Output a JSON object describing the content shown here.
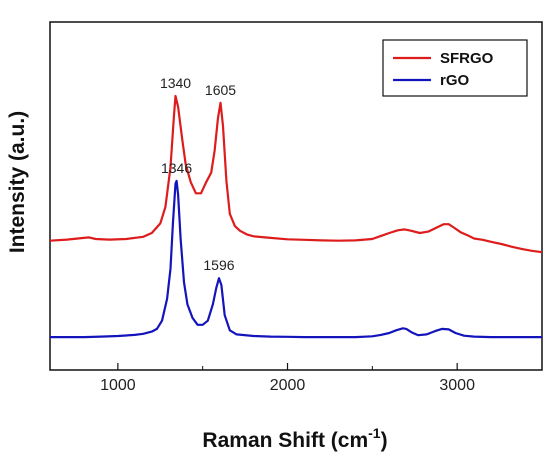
{
  "chart_data": {
    "type": "line",
    "title": "",
    "xlabel": "Raman Shift (cm",
    "xlabel_sup": "-1",
    "xlabel_end": ")",
    "ylabel": "Intensity (a.u.)",
    "xlim": [
      600,
      3500
    ],
    "x_ticks": [
      1000,
      2000,
      3000
    ],
    "x_tick_labels": [
      "1000",
      "2000",
      "3000"
    ],
    "y_ticks_shown": false,
    "grid": false,
    "legend_placement": "top-right",
    "series": [
      {
        "name": "SFRGO",
        "color": "#dd1c1c",
        "x": [
          600,
          700,
          800,
          830,
          870,
          950,
          1050,
          1150,
          1200,
          1250,
          1280,
          1310,
          1330,
          1340,
          1355,
          1380,
          1400,
          1430,
          1460,
          1490,
          1520,
          1550,
          1570,
          1590,
          1605,
          1620,
          1640,
          1660,
          1690,
          1720,
          1760,
          1800,
          1900,
          2000,
          2100,
          2200,
          2300,
          2400,
          2500,
          2600,
          2650,
          2690,
          2730,
          2780,
          2830,
          2880,
          2920,
          2950,
          2980,
          3020,
          3060,
          3100,
          3150,
          3200,
          3260,
          3320,
          3380,
          3440,
          3500
        ],
        "y": [
          0.052,
          0.056,
          0.062,
          0.064,
          0.058,
          0.056,
          0.058,
          0.066,
          0.08,
          0.115,
          0.175,
          0.32,
          0.5,
          0.58,
          0.54,
          0.42,
          0.33,
          0.265,
          0.225,
          0.225,
          0.265,
          0.3,
          0.38,
          0.5,
          0.555,
          0.47,
          0.27,
          0.15,
          0.105,
          0.088,
          0.075,
          0.068,
          0.062,
          0.057,
          0.055,
          0.053,
          0.052,
          0.053,
          0.058,
          0.08,
          0.09,
          0.093,
          0.088,
          0.08,
          0.085,
          0.1,
          0.112,
          0.112,
          0.1,
          0.083,
          0.072,
          0.06,
          0.055,
          0.048,
          0.04,
          0.03,
          0.022,
          0.015,
          0.01
        ]
      },
      {
        "name": "rGO",
        "color": "#1414bc",
        "x": [
          600,
          700,
          800,
          900,
          1000,
          1100,
          1150,
          1200,
          1230,
          1260,
          1290,
          1310,
          1325,
          1340,
          1346,
          1355,
          1370,
          1390,
          1410,
          1440,
          1470,
          1500,
          1530,
          1560,
          1580,
          1596,
          1610,
          1630,
          1660,
          1700,
          1800,
          1900,
          2000,
          2100,
          2200,
          2300,
          2400,
          2500,
          2550,
          2600,
          2640,
          2680,
          2700,
          2730,
          2770,
          2820,
          2870,
          2910,
          2950,
          2990,
          3040,
          3100,
          3200,
          3300,
          3400,
          3500
        ],
        "y": [
          -0.3,
          -0.3,
          -0.3,
          -0.298,
          -0.296,
          -0.292,
          -0.288,
          -0.28,
          -0.27,
          -0.24,
          -0.16,
          -0.05,
          0.12,
          0.26,
          0.27,
          0.22,
          0.06,
          -0.1,
          -0.18,
          -0.23,
          -0.255,
          -0.255,
          -0.24,
          -0.18,
          -0.12,
          -0.085,
          -0.11,
          -0.22,
          -0.275,
          -0.29,
          -0.296,
          -0.298,
          -0.299,
          -0.3,
          -0.3,
          -0.3,
          -0.3,
          -0.297,
          -0.292,
          -0.285,
          -0.275,
          -0.268,
          -0.27,
          -0.282,
          -0.293,
          -0.29,
          -0.278,
          -0.27,
          -0.272,
          -0.285,
          -0.295,
          -0.298,
          -0.3,
          -0.3,
          -0.3,
          -0.3
        ]
      }
    ],
    "annotations": [
      {
        "text": "1340",
        "x": 1340,
        "y": 0.58,
        "series": "SFRGO"
      },
      {
        "text": "1605",
        "x": 1605,
        "y": 0.555,
        "series": "SFRGO"
      },
      {
        "text": "1346",
        "x": 1346,
        "y": 0.27,
        "series": "rGO"
      },
      {
        "text": "1596",
        "x": 1596,
        "y": -0.085,
        "series": "rGO"
      }
    ],
    "ylim": [
      -0.42,
      0.85
    ]
  }
}
